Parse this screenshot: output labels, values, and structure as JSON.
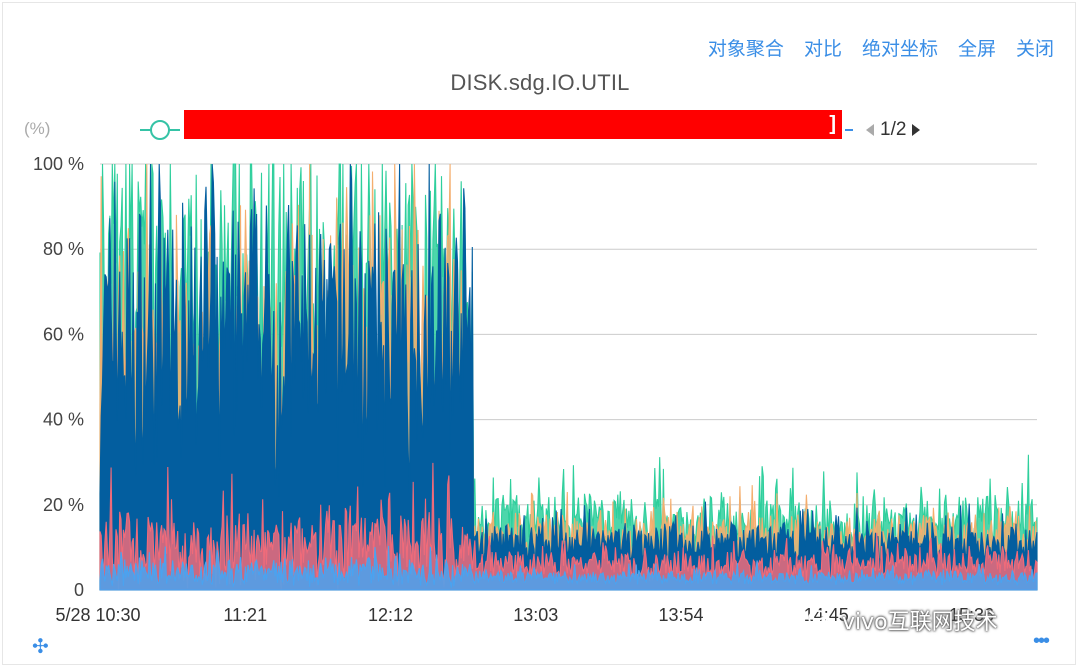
{
  "toolbar": {
    "aggregate": "对象聚合",
    "compare": "对比",
    "absolute_axis": "绝对坐标",
    "fullscreen": "全屏",
    "close": "关闭"
  },
  "legend": {
    "unit": "(%)",
    "pager": "1/2"
  },
  "watermark": {
    "text": "vivo互联网技术"
  },
  "colors": {
    "series_1": "#035e9f",
    "series_2": "#2ecf9c",
    "series_3": "#f4ae6e",
    "series_4": "#ef6b7a",
    "series_5": "#4aa3f0",
    "grid": "#cccccc",
    "accent": "#3a8ee6"
  },
  "icons": {
    "move": "move-icon",
    "more": "more-icon",
    "wechat": "wechat-icon"
  },
  "chart_data": {
    "type": "area",
    "title": "DISK.sdg.IO.UTIL",
    "ylabel": "(%)",
    "ylim": [
      0,
      100
    ],
    "yticks": [
      "0",
      "20 %",
      "40 %",
      "60 %",
      "80 %",
      "100 %"
    ],
    "xticks": [
      "5/28 10:30",
      "11:21",
      "12:12",
      "13:03",
      "13:54",
      "14:45",
      "15:36"
    ],
    "x_range": [
      "10:30",
      "15:59"
    ],
    "grid": true,
    "note_phases": [
      {
        "from": "10:30",
        "to": "12:41",
        "dominant_util_range": [
          35,
          100
        ]
      },
      {
        "from": "12:41",
        "to": "15:59",
        "dominant_util_range": [
          5,
          20
        ]
      }
    ],
    "series": [
      {
        "color_key": "series_1",
        "phase1_mean": 60,
        "phase1_spread": 28,
        "phase2_mean": 11,
        "phase2_spread": 4
      },
      {
        "color_key": "series_2",
        "phase1_mean": 72,
        "phase1_spread": 30,
        "phase2_mean": 16,
        "phase2_spread": 6
      },
      {
        "color_key": "series_3",
        "phase1_mean": 55,
        "phase1_spread": 30,
        "phase2_mean": 13,
        "phase2_spread": 5
      },
      {
        "color_key": "series_4",
        "phase1_mean": 10,
        "phase1_spread": 8,
        "phase2_mean": 6,
        "phase2_spread": 3
      },
      {
        "color_key": "series_5",
        "phase1_mean": 4,
        "phase1_spread": 3,
        "phase2_mean": 3,
        "phase2_spread": 1.5
      }
    ]
  }
}
